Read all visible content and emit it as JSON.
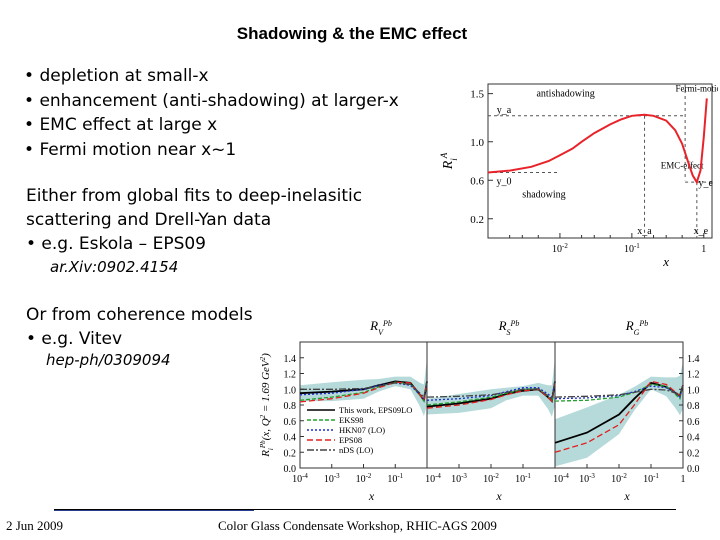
{
  "slide": {
    "title": "Shadowing & the EMC effect",
    "bullets": [
      "depletion at small-x",
      "enhancement (anti-shadowing) at larger-x",
      "EMC effect at large x",
      "Fermi motion near x~1"
    ],
    "para1_line1": "Either from global fits to deep-inelasitic",
    "para1_line2": "scattering and Drell-Yan data",
    "para1_bullet": "• e.g. Eskola – EPS09",
    "ref1": "ar.Xiv:0902.4154",
    "para2_line1": "Or from coherence models",
    "para2_bullet": "• e.g. Vitev",
    "ref2": "hep-ph/0309094",
    "footer_date": "2 Jun 2009",
    "footer_event": "Color Glass Condensate Workshop, RHIC-AGS 2009"
  },
  "chart_data": [
    {
      "type": "line",
      "xlabel": "x",
      "ylabel": "R_i^A",
      "xscale": "log",
      "x_tick_labels": [
        "10^-2",
        "10^-1",
        "1"
      ],
      "y_ticks": [
        0.2,
        0.6,
        1.0,
        1.5
      ],
      "y_tick_labels": [
        "0.2",
        "0.6",
        "1.0",
        "1.5"
      ],
      "ylim": [
        0.0,
        1.6
      ],
      "xlim": [
        0.001,
        1.3
      ],
      "guide_labels": [
        "y_a",
        "y_0",
        "x_a",
        "x_e",
        "y_e"
      ],
      "annotations": [
        "antishadowing",
        "shadowing",
        "EMC-effect",
        "Fermi-motion"
      ],
      "colors": {
        "curve": "#e8232a",
        "guides": "#555555"
      },
      "series": [
        {
          "x": [
            0.001,
            0.002,
            0.004,
            0.007,
            0.01,
            0.015,
            0.02,
            0.03,
            0.05,
            0.07,
            0.1,
            0.15,
            0.2,
            0.3,
            0.4,
            0.5,
            0.6,
            0.7,
            0.8,
            0.9,
            1.0,
            1.1
          ],
          "y": [
            0.68,
            0.7,
            0.74,
            0.8,
            0.86,
            0.93,
            1.0,
            1.09,
            1.18,
            1.23,
            1.27,
            1.28,
            1.27,
            1.22,
            1.12,
            0.98,
            0.8,
            0.65,
            0.58,
            0.7,
            1.05,
            1.45
          ]
        }
      ]
    },
    {
      "type": "line",
      "xlabel": "x",
      "ylabel": "R_i^Pb(x, Q^2 = 1.69 GeV^2)",
      "xscale": "log",
      "panels": [
        "R_V^Pb",
        "R_S^Pb",
        "R_G^Pb"
      ],
      "y_ticks": [
        0.0,
        0.2,
        0.4,
        0.6,
        0.8,
        1.0,
        1.2,
        1.4
      ],
      "y_tick_labels": [
        "0.0",
        "0.2",
        "0.4",
        "0.6",
        "0.8",
        "1.0",
        "1.2",
        "1.4"
      ],
      "ylim": [
        0.0,
        1.6
      ],
      "x_tick_labels": [
        "10^-4",
        "10^-3",
        "10^-2",
        "10^-1",
        "1"
      ],
      "legend": [
        "This work, EPS09LO",
        "EKS98",
        "HKN07 (LO)",
        "EPS08",
        "nDS (LO)"
      ],
      "legend_position": "center-left",
      "colors": {
        "EPS09": "#000000",
        "EKS98": "#22a02e",
        "HKN07": "#1e2fd0",
        "EPS08": "#e02020",
        "nDS": "#444444",
        "band": "#a9d4d4"
      },
      "series": [
        {
          "name": "This work, EPS09LO",
          "panel": 0,
          "x": [
            0.0001,
            0.001,
            0.01,
            0.03,
            0.1,
            0.3,
            0.6,
            0.8,
            1.0
          ],
          "y": [
            0.95,
            0.97,
            1.0,
            1.05,
            1.1,
            1.08,
            0.93,
            0.86,
            1.1
          ]
        },
        {
          "name": "EKS98",
          "panel": 0,
          "x": [
            0.0001,
            0.001,
            0.01,
            0.03,
            0.1,
            0.3,
            0.6,
            0.8,
            1.0
          ],
          "y": [
            0.86,
            0.9,
            0.96,
            1.03,
            1.09,
            1.07,
            0.92,
            0.85,
            1.1
          ]
        },
        {
          "name": "HKN07 (LO)",
          "panel": 0,
          "x": [
            0.0001,
            0.001,
            0.01,
            0.03,
            0.1,
            0.3,
            0.6,
            0.8,
            1.0
          ],
          "y": [
            0.93,
            0.95,
            1.0,
            1.05,
            1.08,
            1.05,
            0.93,
            0.87,
            1.1
          ]
        },
        {
          "name": "EPS08",
          "panel": 0,
          "x": [
            0.0001,
            0.001,
            0.01,
            0.03,
            0.1,
            0.3,
            0.6,
            0.8,
            1.0
          ],
          "y": [
            0.84,
            0.88,
            0.95,
            1.02,
            1.09,
            1.08,
            0.93,
            0.86,
            1.1
          ]
        },
        {
          "name": "nDS (LO)",
          "panel": 0,
          "x": [
            0.0001,
            0.001,
            0.01,
            0.03,
            0.1,
            0.3,
            0.6,
            0.8,
            1.0
          ],
          "y": [
            1.0,
            1.0,
            1.01,
            1.04,
            1.08,
            1.06,
            0.95,
            0.9,
            1.1
          ]
        },
        {
          "name": "This work, EPS09LO",
          "panel": 1,
          "x": [
            0.0001,
            0.001,
            0.01,
            0.03,
            0.1,
            0.3,
            0.6,
            0.8,
            1.0
          ],
          "y": [
            0.78,
            0.82,
            0.88,
            0.94,
            0.98,
            1.0,
            0.9,
            0.85,
            1.1
          ]
        },
        {
          "name": "EKS98",
          "panel": 1,
          "x": [
            0.0001,
            0.001,
            0.01,
            0.03,
            0.1,
            0.3,
            0.6,
            0.8,
            1.0
          ],
          "y": [
            0.8,
            0.84,
            0.9,
            0.95,
            1.0,
            1.01,
            0.9,
            0.85,
            1.1
          ]
        },
        {
          "name": "HKN07 (LO)",
          "panel": 1,
          "x": [
            0.0001,
            0.001,
            0.01,
            0.03,
            0.1,
            0.3,
            0.6,
            0.8,
            1.0
          ],
          "y": [
            0.86,
            0.88,
            0.92,
            0.97,
            1.02,
            1.02,
            0.94,
            0.9,
            1.1
          ]
        },
        {
          "name": "EPS08",
          "panel": 1,
          "x": [
            0.0001,
            0.001,
            0.01,
            0.03,
            0.1,
            0.3,
            0.6,
            0.8,
            1.0
          ],
          "y": [
            0.76,
            0.8,
            0.87,
            0.93,
            0.98,
            1.0,
            0.9,
            0.85,
            1.1
          ]
        },
        {
          "name": "nDS (LO)",
          "panel": 1,
          "x": [
            0.0001,
            0.001,
            0.01,
            0.03,
            0.1,
            0.3,
            0.6,
            0.8,
            1.0
          ],
          "y": [
            0.9,
            0.91,
            0.93,
            0.96,
            1.0,
            1.0,
            0.92,
            0.88,
            1.1
          ]
        },
        {
          "name": "This work, EPS09LO",
          "panel": 2,
          "x": [
            0.0001,
            0.001,
            0.01,
            0.03,
            0.1,
            0.3,
            0.6,
            0.8,
            1.0
          ],
          "y": [
            0.32,
            0.45,
            0.68,
            0.88,
            1.08,
            1.03,
            0.95,
            0.92,
            1.05
          ]
        },
        {
          "name": "EKS98",
          "panel": 2,
          "x": [
            0.0001,
            0.001,
            0.01,
            0.03,
            0.1,
            0.3,
            0.6,
            0.8,
            1.0
          ],
          "y": [
            0.85,
            0.86,
            0.9,
            0.96,
            1.06,
            1.04,
            0.93,
            0.88,
            1.05
          ]
        },
        {
          "name": "HKN07 (LO)",
          "panel": 2,
          "x": [
            0.0001,
            0.001,
            0.01,
            0.03,
            0.1,
            0.3,
            0.6,
            0.8,
            1.0
          ],
          "y": [
            0.88,
            0.89,
            0.92,
            0.97,
            1.04,
            1.02,
            0.95,
            0.9,
            1.05
          ]
        },
        {
          "name": "EPS08",
          "panel": 2,
          "x": [
            0.0001,
            0.001,
            0.01,
            0.03,
            0.1,
            0.3,
            0.6,
            0.8,
            1.0
          ],
          "y": [
            0.2,
            0.32,
            0.55,
            0.8,
            1.1,
            1.06,
            0.96,
            0.92,
            1.05
          ]
        },
        {
          "name": "nDS (LO)",
          "panel": 2,
          "x": [
            0.0001,
            0.001,
            0.01,
            0.03,
            0.1,
            0.3,
            0.6,
            0.8,
            1.0
          ],
          "y": [
            0.9,
            0.91,
            0.93,
            0.96,
            1.0,
            0.99,
            0.95,
            0.92,
            1.05
          ]
        }
      ]
    }
  ]
}
